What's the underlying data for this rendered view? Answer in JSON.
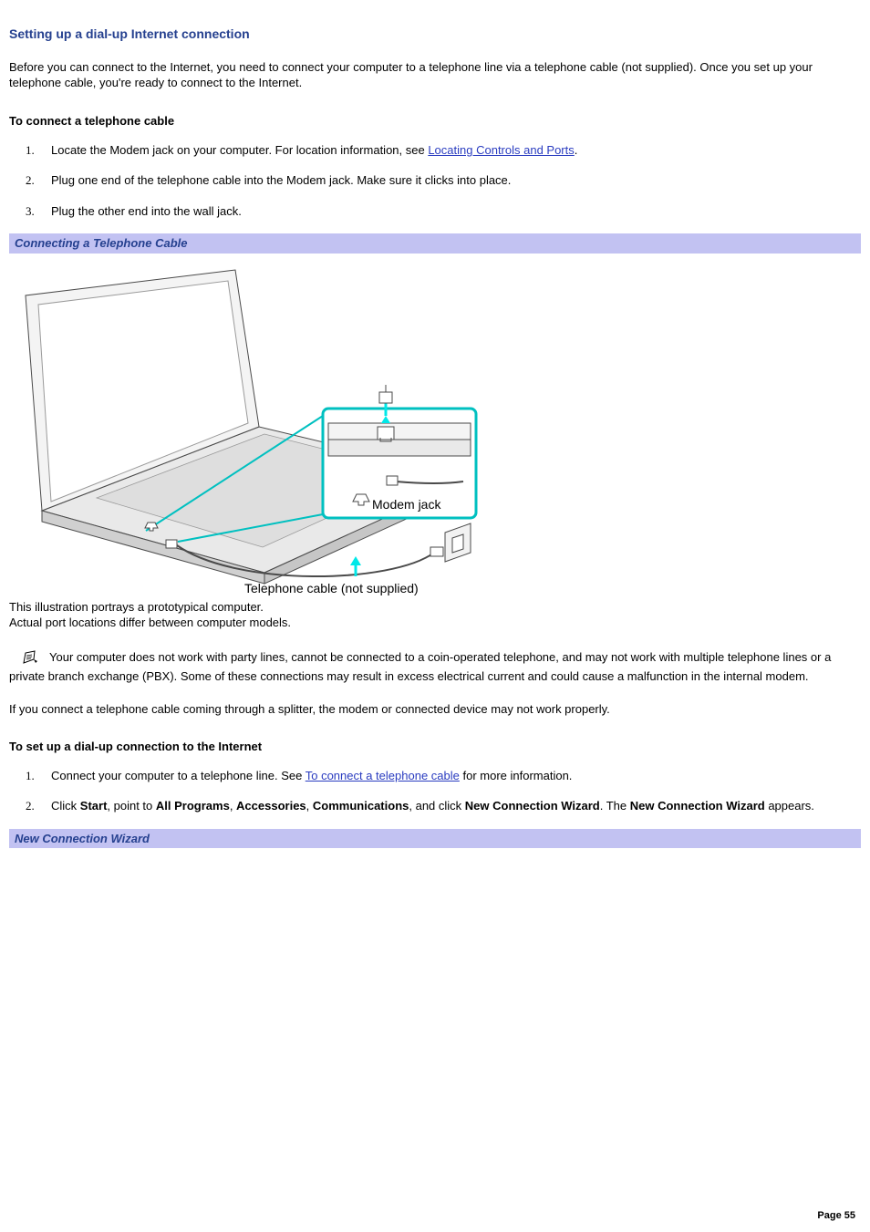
{
  "colors": {
    "heading": "#25408f",
    "link": "#2a3cc0",
    "captionBg": "#c2c2f2",
    "text": "#000000",
    "background": "#ffffff",
    "diagramOutline": "#4a4a4a",
    "diagramFill": "#e9e9e9",
    "diagramFillLight": "#f4f4f4",
    "diagramAccent": "#00e8e8",
    "diagramAccentStroke": "#00c0c0"
  },
  "typography": {
    "bodyFont": "Verdana",
    "bodySize": 13,
    "headingSize": 14,
    "listNumFont": "Times New Roman",
    "captionFont": "Arial"
  },
  "heading": "Setting up a dial-up Internet connection",
  "intro": "Before you can connect to the Internet, you need to connect your computer to a telephone line via a telephone cable (not supplied). Once you set up your telephone cable, you're ready to connect to the Internet.",
  "section1": {
    "title": "To connect a telephone cable",
    "steps": [
      {
        "pre": "Locate the Modem jack on your computer. For location information, see ",
        "link": "Locating Controls and Ports",
        "post": "."
      },
      {
        "text": "Plug one end of the telephone cable into the Modem jack. Make sure it clicks into place."
      },
      {
        "text": "Plug the other end into the wall jack."
      }
    ]
  },
  "captionBar1": "Connecting a Telephone Cable",
  "diagram": {
    "label1": "Modem jack",
    "label2": "Telephone cable (not supplied)"
  },
  "illusNote": {
    "line1": "This illustration portrays a prototypical computer.",
    "line2": "Actual port locations differ between computer models."
  },
  "note1": "Your computer does not work with party lines, cannot be connected to a coin-operated telephone, and may not work with multiple telephone lines or a private branch exchange (PBX). Some of these connections may result in excess electrical current and could cause a malfunction in the internal modem.",
  "note2": "If you connect a telephone cable coming through a splitter, the modem or connected device may not work properly.",
  "section2": {
    "title": "To set up a dial-up connection to the Internet",
    "steps": [
      {
        "pre": "Connect your computer to a telephone line. See ",
        "link": "To connect a telephone cable",
        "post": " for more information."
      },
      {
        "parts": [
          {
            "t": "Click "
          },
          {
            "b": "Start"
          },
          {
            "t": ", point to "
          },
          {
            "b": "All Programs"
          },
          {
            "t": ", "
          },
          {
            "b": "Accessories"
          },
          {
            "t": ", "
          },
          {
            "b": "Communications"
          },
          {
            "t": ", and click "
          },
          {
            "b": "New Connection Wizard"
          },
          {
            "t": ". The "
          },
          {
            "b": "New Connection Wizard"
          },
          {
            "t": " appears."
          }
        ]
      }
    ]
  },
  "captionBar2": "New Connection Wizard",
  "pageNum": "Page 55"
}
